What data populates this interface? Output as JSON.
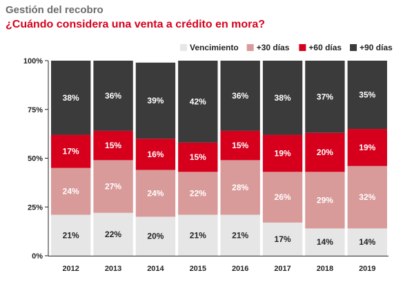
{
  "header": {
    "title": "Gestión del recobro",
    "subtitle": "¿Cuándo considera una venta a crédito en mora?"
  },
  "chart_data": {
    "type": "bar",
    "stacked": true,
    "categories": [
      "2012",
      "2013",
      "2014",
      "2015",
      "2016",
      "2017",
      "2018",
      "2019"
    ],
    "series": [
      {
        "name": "Vencimiento",
        "color": "#e6e6e6",
        "label_color": "#222222",
        "values": [
          21,
          22,
          20,
          21,
          21,
          17,
          14,
          14
        ]
      },
      {
        "name": "+30 días",
        "color": "#d99a9a",
        "label_color": "#ffffff",
        "values": [
          24,
          27,
          24,
          22,
          28,
          26,
          29,
          32
        ]
      },
      {
        "name": "+60 días",
        "color": "#d6001c",
        "label_color": "#ffffff",
        "values": [
          17,
          15,
          16,
          15,
          15,
          19,
          20,
          19
        ]
      },
      {
        "name": "+90 días",
        "color": "#3b3b3b",
        "label_color": "#ffffff",
        "values": [
          38,
          36,
          39,
          42,
          36,
          38,
          37,
          35
        ]
      }
    ],
    "yticks": [
      "0%",
      "25%",
      "50%",
      "75%",
      "100%"
    ],
    "ylim": [
      0,
      100
    ],
    "legend": "top-right",
    "grid": false
  }
}
